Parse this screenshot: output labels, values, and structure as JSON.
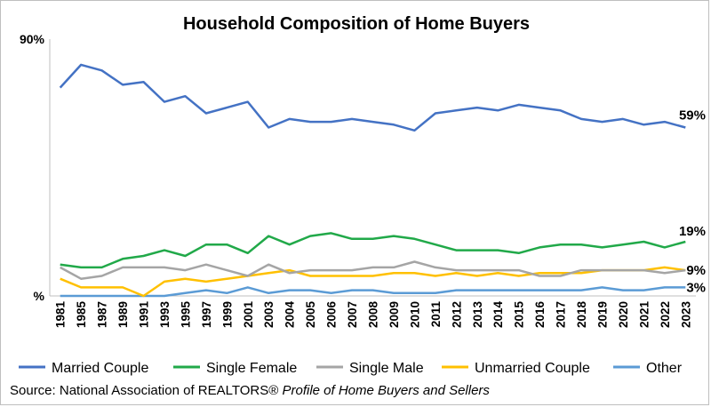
{
  "source": {
    "prefix": "Source: National Association of REALTORS® ",
    "italic": "Profile of Home Buyers and Sellers"
  },
  "chart_data": {
    "type": "line",
    "title": "Household Composition of Home Buyers",
    "xlabel": "",
    "ylabel": "",
    "ylim": [
      0,
      90
    ],
    "y_tick_labels": [
      "90%",
      "%"
    ],
    "grid": false,
    "legend_position": "bottom",
    "x": [
      "1981",
      "1985",
      "1987",
      "1989",
      "1991",
      "1993",
      "1995",
      "1997",
      "1999",
      "2001",
      "2003",
      "2004",
      "2005",
      "2006",
      "2007",
      "2008",
      "2009",
      "2010",
      "2011",
      "2012",
      "2013",
      "2014",
      "2015",
      "2016",
      "2017",
      "2018",
      "2019",
      "2020",
      "2021",
      "2022",
      "2023"
    ],
    "series": [
      {
        "name": "Married Couple",
        "color": "#4472C4",
        "values": [
          73,
          81,
          79,
          74,
          75,
          68,
          70,
          64,
          66,
          68,
          59,
          62,
          61,
          61,
          62,
          61,
          60,
          58,
          64,
          65,
          66,
          65,
          67,
          66,
          65,
          62,
          61,
          62,
          60,
          61,
          59
        ]
      },
      {
        "name": "Single Female",
        "color": "#21A949",
        "values": [
          11,
          10,
          10,
          13,
          14,
          16,
          14,
          18,
          18,
          15,
          21,
          18,
          21,
          22,
          20,
          20,
          21,
          20,
          18,
          16,
          16,
          16,
          15,
          17,
          18,
          18,
          17,
          18,
          19,
          17,
          19
        ]
      },
      {
        "name": "Single Male",
        "color": "#A5A5A5",
        "values": [
          10,
          6,
          7,
          10,
          10,
          10,
          9,
          11,
          9,
          7,
          11,
          8,
          9,
          9,
          9,
          10,
          10,
          12,
          10,
          9,
          9,
          9,
          9,
          7,
          7,
          9,
          9,
          9,
          9,
          8,
          9
        ]
      },
      {
        "name": "Unmarried Couple",
        "color": "#FFC000",
        "values": [
          6,
          3,
          3,
          3,
          0,
          5,
          6,
          5,
          6,
          7,
          8,
          9,
          7,
          7,
          7,
          7,
          8,
          8,
          7,
          8,
          7,
          8,
          7,
          8,
          8,
          8,
          9,
          9,
          9,
          10,
          9
        ]
      },
      {
        "name": "Other",
        "color": "#5B9BD5",
        "values": [
          0,
          0,
          0,
          0,
          0,
          0,
          1,
          2,
          1,
          3,
          1,
          2,
          2,
          1,
          2,
          2,
          1,
          1,
          1,
          2,
          2,
          2,
          2,
          2,
          2,
          2,
          3,
          2,
          2,
          3,
          3
        ]
      }
    ],
    "data_labels": [
      {
        "series": "Married Couple",
        "text": "59%"
      },
      {
        "series": "Single Female",
        "text": "19%"
      },
      {
        "series": "Unmarried Couple",
        "text": "9%"
      },
      {
        "series": "Other",
        "text": "3%"
      }
    ]
  }
}
